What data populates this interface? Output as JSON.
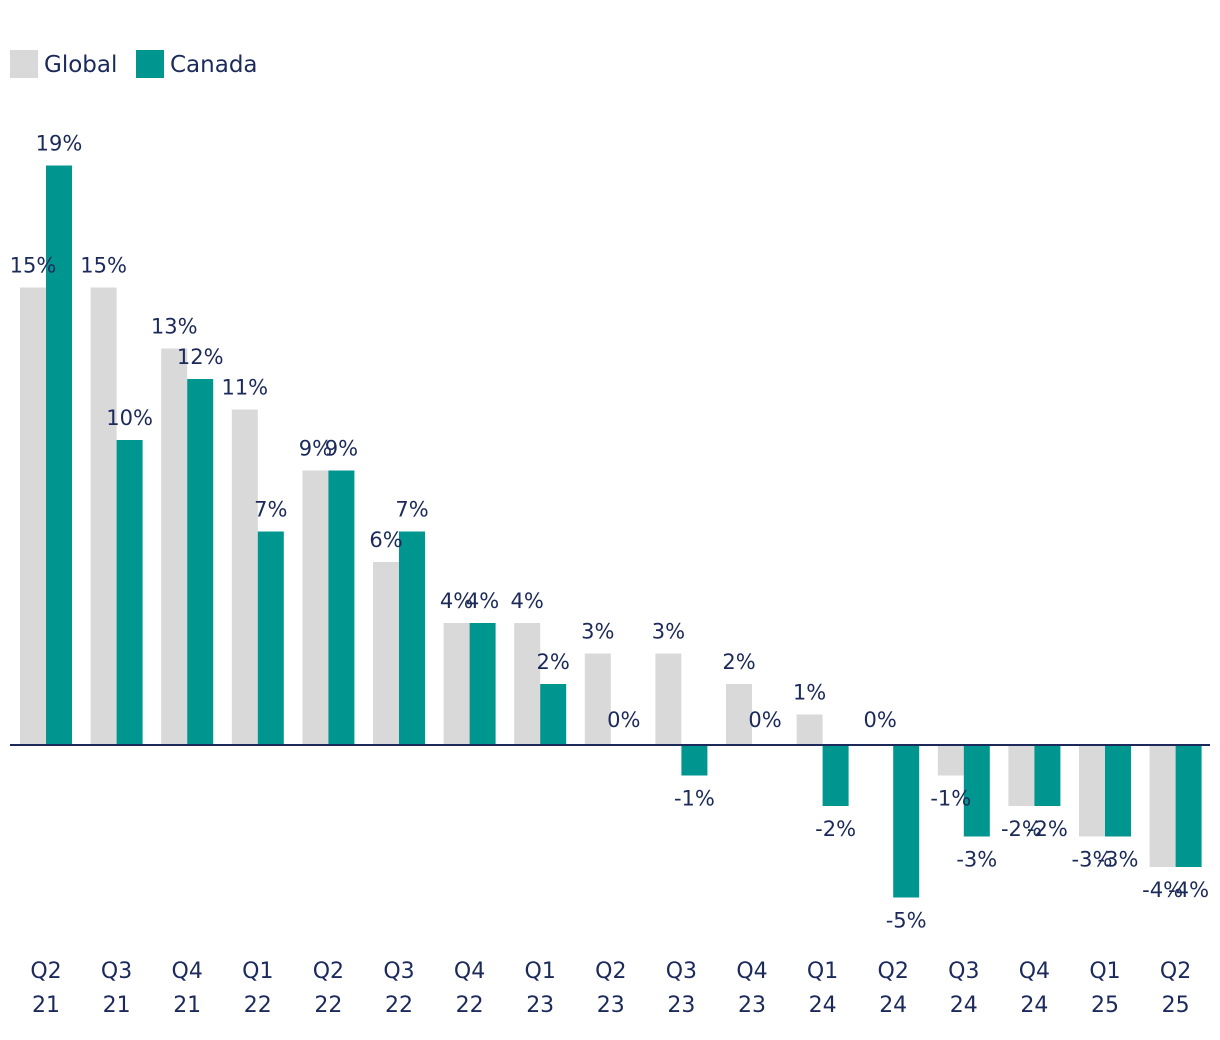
{
  "chart_data": {
    "type": "bar",
    "title": "",
    "xlabel": "",
    "ylabel": "",
    "ylim": [
      -6,
      20
    ],
    "grid": false,
    "legend_position": "top-left",
    "categories": [
      [
        "Q2",
        "21"
      ],
      [
        "Q3",
        "21"
      ],
      [
        "Q4",
        "21"
      ],
      [
        "Q1",
        "22"
      ],
      [
        "Q2",
        "22"
      ],
      [
        "Q3",
        "22"
      ],
      [
        "Q4",
        "22"
      ],
      [
        "Q1",
        "23"
      ],
      [
        "Q2",
        "23"
      ],
      [
        "Q3",
        "23"
      ],
      [
        "Q4",
        "23"
      ],
      [
        "Q1",
        "24"
      ],
      [
        "Q2",
        "24"
      ],
      [
        "Q3",
        "24"
      ],
      [
        "Q4",
        "24"
      ],
      [
        "Q1",
        "25"
      ],
      [
        "Q2",
        "25"
      ]
    ],
    "series": [
      {
        "name": "Global",
        "color": "#d9d9d9",
        "values": [
          15,
          15,
          13,
          11,
          9,
          6,
          4,
          4,
          3,
          3,
          2,
          1,
          0,
          -1,
          -2,
          -3,
          -4
        ],
        "labels": [
          "15%",
          "15%",
          "13%",
          "11%",
          "9%",
          "6%",
          "4%",
          "4%",
          "3%",
          "3%",
          "2%",
          "1%",
          "0%",
          "-1%",
          "-2%",
          "-3%",
          "-4%"
        ]
      },
      {
        "name": "Canada",
        "color": "#009690",
        "values": [
          19,
          10,
          12,
          7,
          9,
          7,
          4,
          2,
          0,
          -1,
          0,
          -2,
          -5,
          -3,
          -2,
          -3,
          -4
        ],
        "labels": [
          "19%",
          "10%",
          "12%",
          "7%",
          "9%",
          "7%",
          "4%",
          "2%",
          "0%",
          "-1%",
          "0%",
          "-2%",
          "-5%",
          "-3%",
          "-2%",
          "-3%",
          "-4%"
        ]
      }
    ],
    "colors": {
      "axis": "#1b2a5a",
      "text": "#1b2a5a"
    }
  }
}
